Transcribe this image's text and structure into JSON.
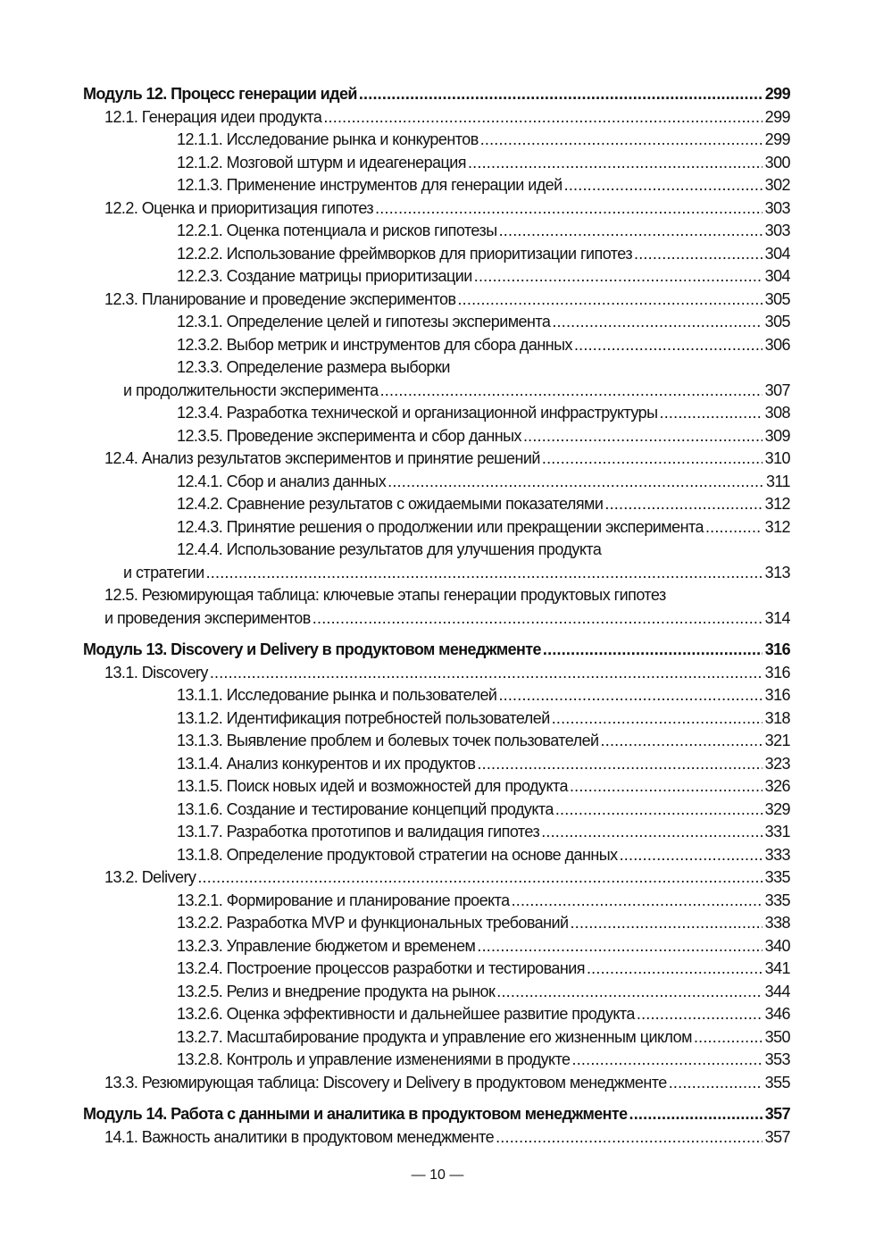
{
  "sections": [
    {
      "entries": [
        {
          "level": 1,
          "text": "Модуль 12. Процесс генерации идей",
          "page": "299"
        },
        {
          "level": 2,
          "text": "12.1. Генерация идеи продукта",
          "page": "299"
        },
        {
          "level": 3,
          "text": "12.1.1. Исследование рынка и конкурентов",
          "page": "299"
        },
        {
          "level": 3,
          "text": "12.1.2. Мозговой штурм и идеагенерация",
          "page": "300"
        },
        {
          "level": 3,
          "text": "12.1.3. Применение инструментов для генерации идей",
          "page": "302"
        },
        {
          "level": 2,
          "text": "12.2. Оценка и приоритизация гипотез",
          "page": "303"
        },
        {
          "level": 3,
          "text": "12.2.1. Оценка потенциала и рисков гипотезы",
          "page": "303"
        },
        {
          "level": 3,
          "text": "12.2.2. Использование фреймворков для приоритизации гипотез",
          "page": "304"
        },
        {
          "level": 3,
          "text": "12.2.3. Создание матрицы приоритизации",
          "page": "304"
        },
        {
          "level": 2,
          "text": "12.3. Планирование и проведение экспериментов",
          "page": "305"
        },
        {
          "level": 3,
          "text": "12.3.1. Определение целей и гипотезы эксперимента",
          "page": "305"
        },
        {
          "level": 3,
          "text": "12.3.2. Выбор метрик и инструментов для сбора данных",
          "page": "306"
        },
        {
          "level": 3,
          "text": "12.3.3. Определение размера выборки",
          "cont": "и продолжительности эксперимента",
          "page": "307"
        },
        {
          "level": 3,
          "text": "12.3.4. Разработка технической и организационной инфраструктуры",
          "page": "308"
        },
        {
          "level": 3,
          "text": "12.3.5. Проведение эксперимента и сбор данных",
          "page": "309"
        },
        {
          "level": 2,
          "text": "12.4. Анализ результатов экспериментов и принятие решений",
          "page": "310"
        },
        {
          "level": 3,
          "text": "12.4.1. Сбор и анализ данных",
          "page": "311"
        },
        {
          "level": 3,
          "text": "12.4.2. Сравнение результатов с ожидаемыми показателями",
          "page": "312"
        },
        {
          "level": 3,
          "text": "12.4.3. Принятие решения о продолжении или прекращении эксперимента",
          "page": "312"
        },
        {
          "level": 3,
          "text": "12.4.4. Использование результатов для улучшения продукта",
          "cont": "и стратегии",
          "page": "313"
        },
        {
          "level": 2,
          "text": "12.5. Резюмирующая таблица: ключевые этапы генерации продуктовых гипотез",
          "cont": "и проведения экспериментов",
          "page": "314"
        }
      ]
    },
    {
      "entries": [
        {
          "level": 1,
          "text": "Модуль 13. Discovery и Delivery в продуктовом менеджменте",
          "page": "316"
        },
        {
          "level": 2,
          "text": "13.1. Discovery",
          "page": "316"
        },
        {
          "level": 3,
          "text": "13.1.1. Исследование рынка и пользователей",
          "page": "316"
        },
        {
          "level": 3,
          "text": "13.1.2. Идентификация потребностей пользователей",
          "page": "318"
        },
        {
          "level": 3,
          "text": "13.1.3. Выявление проблем и болевых точек пользователей",
          "page": "321"
        },
        {
          "level": 3,
          "text": "13.1.4. Анализ конкурентов и их продуктов",
          "page": "323"
        },
        {
          "level": 3,
          "text": "13.1.5. Поиск новых идей и возможностей для продукта",
          "page": "326"
        },
        {
          "level": 3,
          "text": "13.1.6. Создание и тестирование концепций продукта",
          "page": "329"
        },
        {
          "level": 3,
          "text": "13.1.7. Разработка прототипов и валидация гипотез",
          "page": "331"
        },
        {
          "level": 3,
          "text": "13.1.8. Определение продуктовой стратегии на основе данных",
          "page": "333"
        },
        {
          "level": 2,
          "text": "13.2. Delivery",
          "page": "335"
        },
        {
          "level": 3,
          "text": "13.2.1. Формирование и планирование проекта",
          "page": "335"
        },
        {
          "level": 3,
          "text": "13.2.2. Разработка MVP и функциональных требований",
          "page": "338"
        },
        {
          "level": 3,
          "text": "13.2.3. Управление бюджетом и временем",
          "page": "340"
        },
        {
          "level": 3,
          "text": "13.2.4. Построение процессов разработки и тестирования",
          "page": "341"
        },
        {
          "level": 3,
          "text": "13.2.5. Релиз и внедрение продукта на рынок",
          "page": "344"
        },
        {
          "level": 3,
          "text": "13.2.6. Оценка эффективности и дальнейшее развитие продукта",
          "page": "346"
        },
        {
          "level": 3,
          "text": "13.2.7. Масштабирование продукта и управление его жизненным циклом",
          "page": "350"
        },
        {
          "level": 3,
          "text": "13.2.8. Контроль и управление изменениями в продукте",
          "page": "353"
        },
        {
          "level": 2,
          "text": "13.3. Резюмирующая таблица: Discovery и Delivery в продуктовом менеджменте",
          "page": "355"
        }
      ]
    },
    {
      "entries": [
        {
          "level": 1,
          "text": "Модуль 14. Работа с данными и аналитика в продуктовом менеджменте",
          "page": "357"
        },
        {
          "level": 2,
          "text": "14.1. Важность аналитики в продуктовом менеджменте",
          "page": "357"
        }
      ]
    }
  ],
  "footer": {
    "page_number": "— 10 —"
  }
}
